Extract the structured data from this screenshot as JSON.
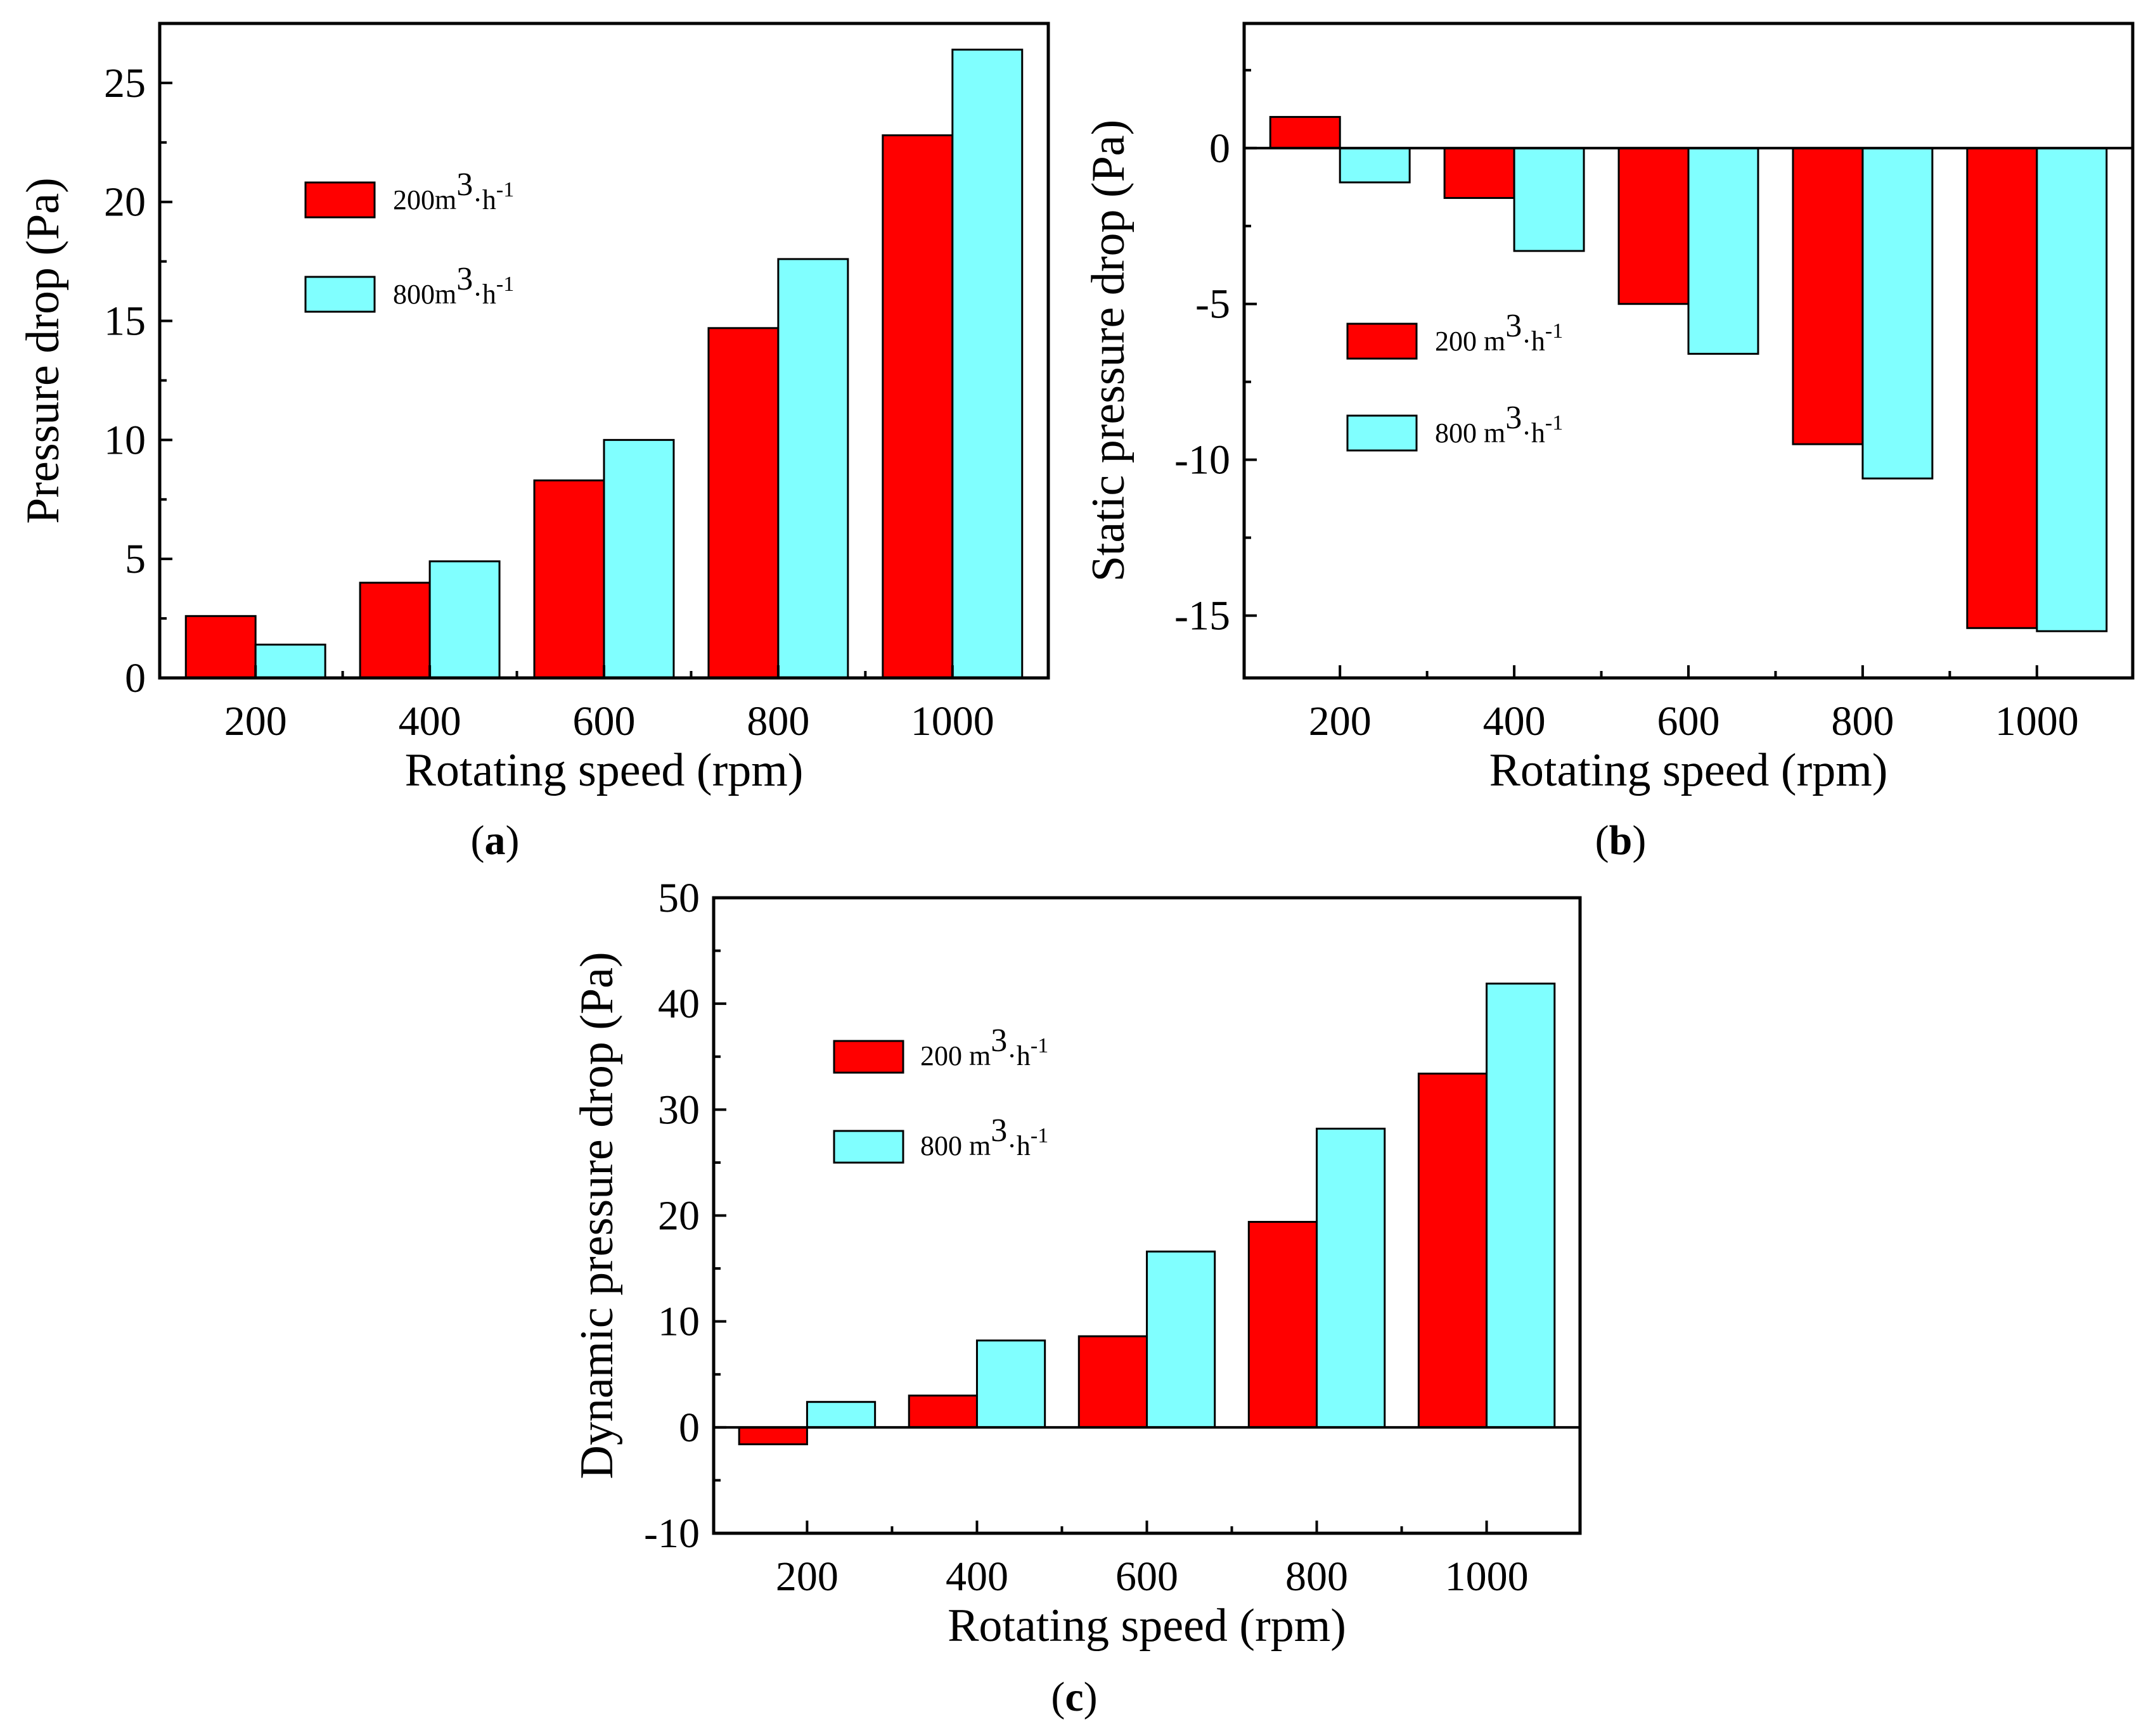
{
  "figure": {
    "panels": [
      "(a)",
      "(b)",
      "(c)"
    ]
  },
  "colors": {
    "series_200": "#ff0000",
    "series_800": "#80ffff",
    "axis": "#000000"
  },
  "chart_data": [
    {
      "id": "a",
      "type": "bar",
      "panel_label": "a",
      "title": "",
      "xlabel": "Rotating speed (rpm)",
      "ylabel": "Pressure drop (Pa)",
      "categories": [
        "200",
        "400",
        "600",
        "800",
        "1000"
      ],
      "ylim": [
        0,
        27.5
      ],
      "yticks": [
        0,
        5,
        10,
        15,
        20,
        25
      ],
      "ytick_labels": [
        "0",
        "5",
        "10",
        "15",
        "20",
        "25"
      ],
      "series": [
        {
          "name": "200m3·h-1",
          "legend_main": "200m",
          "legend_sup1": "3",
          "legend_mid": "·h",
          "legend_sup2": "-1",
          "values": [
            2.6,
            4.0,
            8.3,
            14.7,
            22.8
          ]
        },
        {
          "name": "800m3·h-1",
          "legend_main": "800m",
          "legend_sup1": "3",
          "legend_mid": "·h",
          "legend_sup2": "-1",
          "values": [
            1.4,
            4.9,
            10.0,
            17.6,
            26.4
          ]
        }
      ],
      "legend_position": "upper-left"
    },
    {
      "id": "b",
      "type": "bar",
      "panel_label": "b",
      "title": "",
      "xlabel": "Rotating speed (rpm)",
      "ylabel": "Static pressure drop (Pa)",
      "categories": [
        "200",
        "400",
        "600",
        "800",
        "1000"
      ],
      "ylim": [
        -17,
        4
      ],
      "yticks": [
        -15,
        -10,
        -5,
        0
      ],
      "ytick_labels": [
        "-15",
        "-10",
        "-5",
        "0"
      ],
      "series": [
        {
          "name": "200 m3·h-1",
          "legend_main": "200 m",
          "legend_sup1": "3",
          "legend_mid": "·h",
          "legend_sup2": "-1",
          "values": [
            1.0,
            -1.6,
            -5.0,
            -9.5,
            -15.4
          ]
        },
        {
          "name": "800 m3·h-1",
          "legend_main": "800 m",
          "legend_sup1": "3",
          "legend_mid": "·h",
          "legend_sup2": "-1",
          "values": [
            -1.1,
            -3.3,
            -6.6,
            -10.6,
            -15.5
          ]
        }
      ],
      "legend_position": "middle-left"
    },
    {
      "id": "c",
      "type": "bar",
      "panel_label": "c",
      "title": "",
      "xlabel": "Rotating speed (rpm)",
      "ylabel": "Dynamic pressure drop (Pa)",
      "categories": [
        "200",
        "400",
        "600",
        "800",
        "1000"
      ],
      "ylim": [
        -10,
        50
      ],
      "yticks": [
        -10,
        0,
        10,
        20,
        30,
        40,
        50
      ],
      "ytick_labels": [
        "-10",
        "0",
        "10",
        "20",
        "30",
        "40",
        "50"
      ],
      "series": [
        {
          "name": "200 m3·h-1",
          "legend_main": "200 m",
          "legend_sup1": "3",
          "legend_mid": "·h",
          "legend_sup2": "-1",
          "values": [
            -1.6,
            3.0,
            8.6,
            19.4,
            33.4
          ]
        },
        {
          "name": "800 m3·h-1",
          "legend_main": "800 m",
          "legend_sup1": "3",
          "legend_mid": "·h",
          "legend_sup2": "-1",
          "values": [
            2.4,
            8.2,
            16.6,
            28.2,
            41.9
          ]
        }
      ],
      "legend_position": "upper-left"
    }
  ]
}
